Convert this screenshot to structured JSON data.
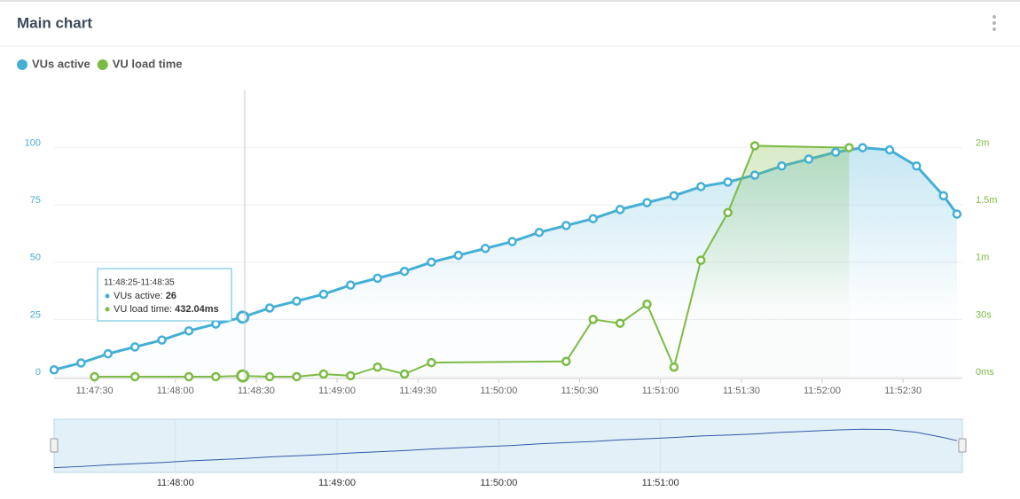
{
  "header": {
    "title": "Main chart"
  },
  "chart_data": {
    "type": "line",
    "series": [
      {
        "name": "VUs active",
        "color": "#45afd6",
        "x": [
          "11:47:15",
          "11:47:25",
          "11:47:35",
          "11:47:45",
          "11:47:55",
          "11:48:05",
          "11:48:15",
          "11:48:25",
          "11:48:35",
          "11:48:45",
          "11:48:55",
          "11:49:05",
          "11:49:15",
          "11:49:25",
          "11:49:35",
          "11:49:45",
          "11:49:55",
          "11:50:05",
          "11:50:15",
          "11:50:25",
          "11:50:35",
          "11:50:45",
          "11:50:55",
          "11:51:05",
          "11:51:15",
          "11:51:25",
          "11:51:35",
          "11:51:45",
          "11:51:55",
          "11:52:05",
          "11:52:15",
          "11:52:25",
          "11:52:35",
          "11:52:45",
          "11:52:50"
        ],
        "values": [
          3,
          6,
          10,
          13,
          16,
          20,
          23,
          26,
          30,
          33,
          36,
          40,
          43,
          46,
          50,
          53,
          56,
          59,
          63,
          66,
          69,
          73,
          76,
          79,
          83,
          85,
          88,
          92,
          95,
          98,
          100,
          99,
          92,
          79,
          71
        ]
      },
      {
        "name": "VU load time",
        "color": "#7cbb44",
        "axis": "y2",
        "x": [
          "11:47:30",
          "11:47:45",
          "11:48:05",
          "11:48:15",
          "11:48:25",
          "11:48:35",
          "11:48:45",
          "11:48:55",
          "11:49:05",
          "11:49:15",
          "11:49:25",
          "11:49:35",
          "11:50:25",
          "11:50:35",
          "11:50:45",
          "11:50:55",
          "11:51:05",
          "11:51:15",
          "11:51:25",
          "11:51:35",
          "11:52:10"
        ],
        "values": [
          0,
          0,
          0,
          0,
          0.43204,
          0,
          0,
          1.4,
          0.5,
          5,
          1.4,
          7.4,
          8,
          30,
          28,
          38,
          5,
          61,
          86,
          121,
          120
        ]
      }
    ],
    "xlim": [
      "11:47:15",
      "11:52:52"
    ],
    "xticks": [
      "11:47:30",
      "11:48:00",
      "11:48:30",
      "11:49:00",
      "11:49:30",
      "11:50:00",
      "11:50:30",
      "11:51:00",
      "11:51:30",
      "11:52:00",
      "11:52:30"
    ],
    "ylim": [
      0,
      125
    ],
    "yticks": [
      0,
      25,
      50,
      75,
      100
    ],
    "y2lim": [
      0,
      150
    ],
    "y2ticks": [
      {
        "value": 0,
        "label": "0ms"
      },
      {
        "value": 30,
        "label": "30s"
      },
      {
        "value": 60,
        "label": "1m"
      },
      {
        "value": 90,
        "label": "1.5m"
      },
      {
        "value": 120,
        "label": "2m"
      }
    ],
    "grid": true,
    "legend": "top-left",
    "tooltip": {
      "time_range": "11:48:25-11:48:35",
      "rows": [
        {
          "label": "VUs active: ",
          "value": "26"
        },
        {
          "label": "VU load time: ",
          "value": "432.04ms"
        }
      ]
    },
    "navigator": {
      "xticks": [
        "11:48:00",
        "11:49:00",
        "11:50:00",
        "11:51:00"
      ]
    }
  }
}
